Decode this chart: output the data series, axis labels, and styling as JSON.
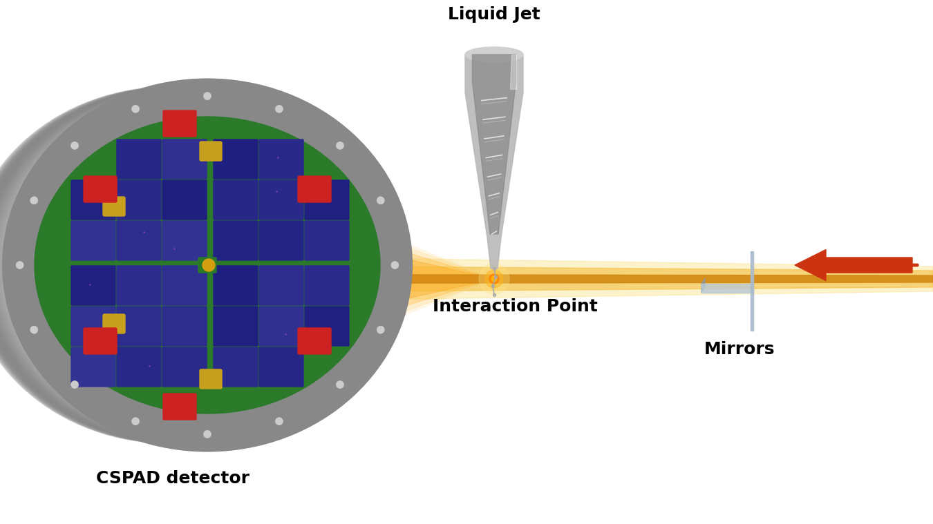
{
  "bg_color": "#ffffff",
  "title": "",
  "label_cspad": "CSPAD detector",
  "label_liquid_jet": "Liquid Jet",
  "label_interaction": "Interaction Point",
  "label_mirrors": "Mirrors",
  "label_fontsize": 18,
  "label_fontweight": "bold",
  "beam_color_outer": "#f5d090",
  "beam_color_inner": "#e8a030",
  "beam_color_core": "#d4860a",
  "diffraction_color": "#f0c070",
  "detector_outer_color": "#888888",
  "detector_rim_color": "#707070",
  "detector_green": "#2a7a2a",
  "detector_blue": "#3030a0",
  "red_block_color": "#cc2222",
  "gold_block_color": "#c8a020",
  "mirror_color": "#aaccdd",
  "arrow_color": "#cc3311",
  "interaction_color": "#ff8800",
  "jet_color": "#aaaaaa"
}
